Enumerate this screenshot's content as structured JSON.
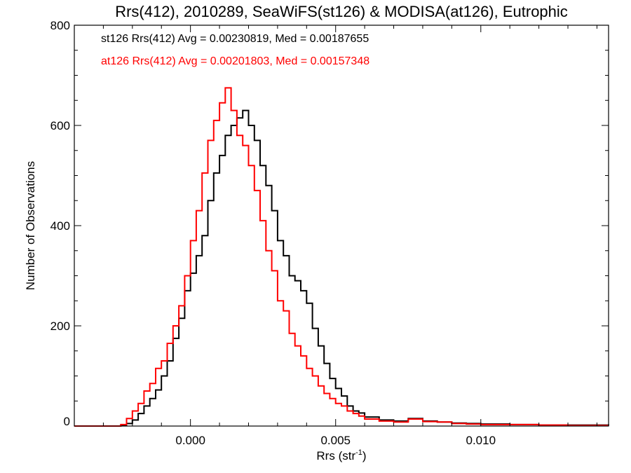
{
  "chart_data": {
    "type": "line",
    "title": "Rrs(412), 2010289, SeaWiFS(st126) & MODISA(at126), Eutrophic",
    "xlabel": "Rrs (str",
    "xlabel_sup": "-1",
    "xlabel_close": ")",
    "ylabel": "Number of Observations",
    "xlim": [
      -0.004,
      0.0144
    ],
    "ylim": [
      0,
      800
    ],
    "x_ticks": [
      0.0,
      0.005,
      0.01
    ],
    "x_tick_labels": [
      "0.000",
      "0.005",
      "0.010"
    ],
    "y_ticks": [
      0,
      200,
      400,
      600,
      800
    ],
    "y_tick_labels": [
      "0",
      "200",
      "400",
      "600",
      "800"
    ],
    "grid": false,
    "legend_placement": "top-left",
    "series": [
      {
        "name": "st126 Rrs(412) Avg = 0.00230819, Med = 0.00187655",
        "color": "#000000",
        "x": [
          -0.004,
          -0.0032,
          -0.0028,
          -0.0024,
          -0.0022,
          -0.002,
          -0.0018,
          -0.0016,
          -0.0014,
          -0.0012,
          -0.001,
          -0.0008,
          -0.0006,
          -0.0004,
          -0.0002,
          0.0,
          0.0002,
          0.0004,
          0.0006,
          0.0008,
          0.001,
          0.0012,
          0.0014,
          0.0016,
          0.0018,
          0.002,
          0.0022,
          0.0024,
          0.0026,
          0.0028,
          0.003,
          0.0032,
          0.0034,
          0.0036,
          0.0038,
          0.004,
          0.0042,
          0.0044,
          0.0046,
          0.0048,
          0.005,
          0.0052,
          0.0054,
          0.0056,
          0.0058,
          0.006,
          0.0065,
          0.007,
          0.0075,
          0.008,
          0.0085,
          0.009,
          0.0095,
          0.01,
          0.011,
          0.012,
          0.013,
          0.0144
        ],
        "values": [
          0,
          0,
          0,
          2,
          5,
          12,
          25,
          40,
          55,
          72,
          100,
          130,
          175,
          215,
          270,
          305,
          340,
          380,
          450,
          505,
          540,
          580,
          600,
          615,
          630,
          600,
          570,
          520,
          480,
          430,
          370,
          340,
          300,
          290,
          270,
          245,
          195,
          160,
          125,
          95,
          75,
          60,
          40,
          30,
          26,
          18,
          12,
          10,
          15,
          10,
          8,
          6,
          5,
          4,
          3,
          2,
          2,
          1
        ]
      },
      {
        "name": "at126 Rrs(412) Avg = 0.00201803, Med = 0.00157348",
        "color": "#ff0000",
        "x": [
          -0.004,
          -0.0032,
          -0.0028,
          -0.0024,
          -0.0022,
          -0.002,
          -0.0018,
          -0.0016,
          -0.0014,
          -0.0012,
          -0.001,
          -0.0008,
          -0.0006,
          -0.0004,
          -0.0002,
          0.0,
          0.0002,
          0.0004,
          0.0006,
          0.0008,
          0.001,
          0.0012,
          0.0014,
          0.0016,
          0.0018,
          0.002,
          0.0022,
          0.0024,
          0.0026,
          0.0028,
          0.003,
          0.0032,
          0.0034,
          0.0036,
          0.0038,
          0.004,
          0.0042,
          0.0044,
          0.0046,
          0.0048,
          0.005,
          0.0052,
          0.0054,
          0.0056,
          0.0058,
          0.006,
          0.0065,
          0.007,
          0.0075,
          0.008,
          0.0085,
          0.009,
          0.0095,
          0.01,
          0.011,
          0.012,
          0.013,
          0.0144
        ],
        "values": [
          0,
          0,
          0,
          3,
          15,
          30,
          45,
          70,
          85,
          115,
          130,
          165,
          200,
          240,
          300,
          370,
          430,
          505,
          570,
          610,
          645,
          675,
          630,
          580,
          560,
          520,
          470,
          410,
          350,
          310,
          250,
          230,
          185,
          160,
          140,
          115,
          100,
          80,
          65,
          55,
          45,
          40,
          30,
          25,
          20,
          14,
          10,
          8,
          14,
          9,
          8,
          5,
          4,
          3,
          3,
          2,
          1,
          1
        ]
      }
    ]
  }
}
